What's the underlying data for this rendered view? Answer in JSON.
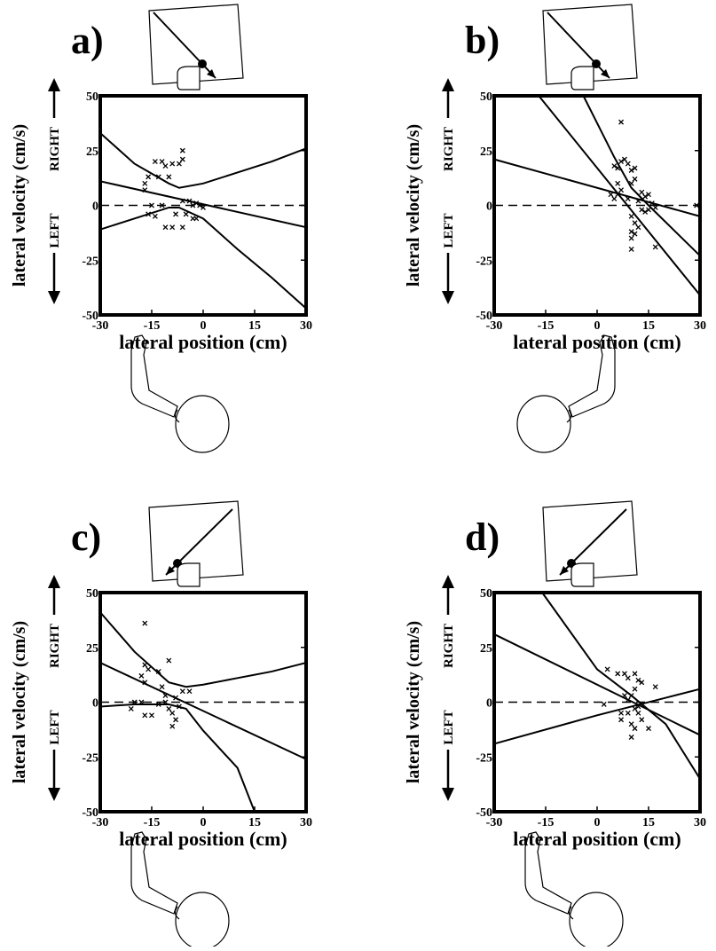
{
  "chart_data": [
    {
      "type": "scatter",
      "title": "a)",
      "xlabel": "lateral position (cm)",
      "ylabel": "lateral velocity (cm/s)",
      "annotations": [
        "RIGHT",
        "LEFT"
      ],
      "xlim": [
        -30,
        30
      ],
      "ylim": [
        -50,
        50
      ],
      "xticks": [
        -30,
        -15,
        0,
        15,
        30
      ],
      "yticks": [
        -50,
        -25,
        0,
        25,
        50
      ],
      "x": [
        -16,
        -17,
        -17,
        -14,
        -12,
        -11,
        -9,
        -7,
        -6,
        -6,
        -13,
        -10,
        -14,
        -16,
        -11,
        -9,
        -6,
        -5,
        -4,
        -3,
        -2,
        -1,
        0,
        -8,
        -6,
        -15,
        -12,
        -3,
        -2
      ],
      "y": [
        13,
        10,
        7,
        20,
        20,
        18,
        19,
        19,
        25,
        21,
        13,
        13,
        -5,
        -4,
        -10,
        -10,
        -10,
        -4,
        2,
        0,
        1,
        0,
        -1,
        -4,
        2,
        0,
        0,
        -6,
        -6
      ],
      "lines": [
        {
          "x": [
            -30,
            30
          ],
          "y": [
            11,
            -10
          ]
        },
        {
          "x": [
            -30,
            -20,
            -10,
            -7,
            0,
            10,
            20,
            30
          ],
          "y": [
            33,
            19,
            10,
            8,
            10,
            15,
            20,
            26
          ]
        },
        {
          "x": [
            -30,
            -20,
            -10,
            -7,
            0,
            10,
            20,
            30
          ],
          "y": [
            -11,
            -6,
            -1,
            -1,
            -6,
            -20,
            -33,
            -47
          ]
        }
      ]
    },
    {
      "type": "scatter",
      "title": "b)",
      "xlabel": "lateral position (cm)",
      "ylabel": "lateral velocity (cm/s)",
      "annotations": [
        "RIGHT",
        "LEFT"
      ],
      "xlim": [
        -30,
        30
      ],
      "ylim": [
        -50,
        50
      ],
      "xticks": [
        -30,
        -15,
        0,
        15,
        30
      ],
      "yticks": [
        -50,
        -25,
        0,
        25,
        50
      ],
      "x": [
        7,
        5,
        6,
        7,
        8,
        9,
        10,
        11,
        10,
        11,
        6,
        7,
        4,
        5,
        6,
        9,
        12,
        13,
        14,
        15,
        16,
        17,
        15,
        14,
        10,
        11,
        10,
        10,
        11,
        12,
        17,
        10,
        13,
        29
      ],
      "y": [
        38,
        18,
        17,
        20,
        21,
        19,
        16,
        17,
        10,
        12,
        10,
        7,
        5,
        3,
        5,
        3,
        2,
        6,
        4,
        5,
        1,
        -1,
        -2,
        -3,
        -5,
        -8,
        -12,
        -15,
        -13,
        -10,
        -19,
        -20,
        -2,
        0
      ],
      "lines": [
        {
          "x": [
            -30,
            30
          ],
          "y": [
            21,
            -5
          ]
        },
        {
          "x": [
            -17,
            30
          ],
          "y": [
            50,
            -41
          ]
        },
        {
          "x": [
            -4,
            5,
            10,
            15,
            30
          ],
          "y": [
            50,
            22,
            8,
            0,
            -23
          ]
        }
      ]
    },
    {
      "type": "scatter",
      "title": "c)",
      "xlabel": "lateral position (cm)",
      "ylabel": "lateral velocity (cm/s)",
      "annotations": [
        "RIGHT",
        "LEFT"
      ],
      "xlim": [
        -30,
        30
      ],
      "ylim": [
        -50,
        50
      ],
      "xticks": [
        -30,
        -15,
        0,
        15,
        30
      ],
      "yticks": [
        -50,
        -25,
        0,
        25,
        50
      ],
      "x": [
        -17,
        -17,
        -16,
        -18,
        -17,
        -13,
        -12,
        -10,
        -11,
        -18,
        -15,
        -17,
        -9,
        -9,
        -8,
        -7,
        -6,
        -4,
        -8,
        -10,
        -13,
        -11,
        -20,
        -21
      ],
      "y": [
        36,
        17,
        15,
        12,
        9,
        14,
        7,
        19,
        3,
        0,
        -6,
        -6,
        -5,
        -11,
        -8,
        -2,
        5,
        5,
        2,
        -3,
        -1,
        0,
        0,
        -3
      ],
      "lines": [
        {
          "x": [
            -30,
            30
          ],
          "y": [
            18,
            -26
          ]
        },
        {
          "x": [
            -30,
            -20,
            -10,
            -5,
            0,
            10,
            20,
            30
          ],
          "y": [
            41,
            23,
            9,
            7,
            8,
            11,
            14,
            18
          ]
        },
        {
          "x": [
            -30,
            -20,
            -10,
            -5,
            0,
            10,
            15
          ],
          "y": [
            -2,
            -1,
            -1,
            -3,
            -13,
            -30,
            -50
          ]
        }
      ]
    },
    {
      "type": "scatter",
      "title": "d)",
      "xlabel": "lateral position (cm)",
      "ylabel": "lateral velocity (cm/s)",
      "annotations": [
        "RIGHT",
        "LEFT"
      ],
      "xlim": [
        -30,
        30
      ],
      "ylim": [
        -50,
        50
      ],
      "xticks": [
        -30,
        -15,
        0,
        15,
        30
      ],
      "yticks": [
        -50,
        -25,
        0,
        25,
        50
      ],
      "x": [
        3,
        6,
        8,
        9,
        11,
        12,
        13,
        17,
        8,
        9,
        10,
        11,
        7,
        7,
        9,
        11,
        12,
        13,
        10,
        11,
        15,
        10,
        12,
        2
      ],
      "y": [
        15,
        13,
        13,
        11,
        13,
        10,
        9,
        7,
        3,
        1,
        3,
        6,
        -5,
        -8,
        -5,
        -3,
        -5,
        -8,
        -10,
        -12,
        -12,
        -16,
        -2,
        -1
      ],
      "lines": [
        {
          "x": [
            -30,
            30
          ],
          "y": [
            31,
            -15
          ]
        },
        {
          "x": [
            -16,
            0,
            10,
            20,
            30
          ],
          "y": [
            50,
            15,
            3,
            -10,
            -35
          ]
        },
        {
          "x": [
            -30,
            0,
            10,
            20,
            30
          ],
          "y": [
            -19,
            -6,
            -2,
            2,
            6
          ]
        }
      ]
    }
  ]
}
